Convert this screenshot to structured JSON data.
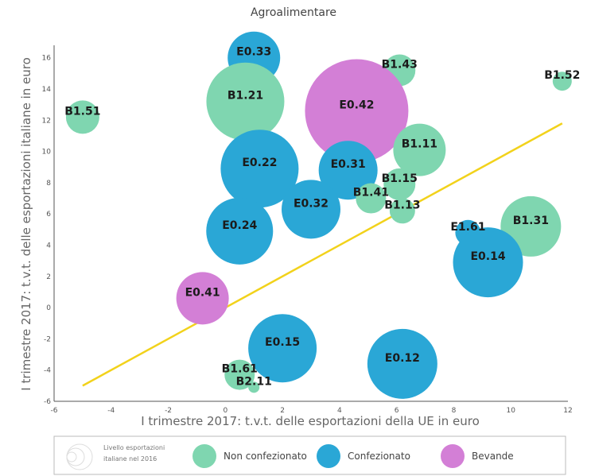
{
  "chart_data": {
    "type": "scatter",
    "title": "Agroalimentare",
    "xlabel": "I trimestre 2017: t.v.t. delle esportazioni della UE in euro",
    "ylabel": "I trimestre 2017: t.v.t. delle esportazioni italiane in euro",
    "xlim": [
      -6,
      12
    ],
    "ylim": [
      -6,
      16.8
    ],
    "xticks": [
      -6,
      -4,
      -2,
      0,
      2,
      4,
      6,
      8,
      10,
      12
    ],
    "yticks": [
      -6,
      -4,
      -2,
      0,
      2,
      4,
      6,
      8,
      10,
      12,
      14,
      16
    ],
    "grid": false,
    "trend_line": {
      "x": [
        -5,
        11.8
      ],
      "y": [
        -5,
        11.8
      ],
      "color": "#f2d21b"
    },
    "categories": {
      "non_confezionato": "#7fd6b0",
      "confezionato": "#2aa7d6",
      "bevande": "#d37fd6"
    },
    "points": [
      {
        "label": "E0.33",
        "x": 1.0,
        "y": 16.0,
        "size": 33,
        "category": "confezionato"
      },
      {
        "label": "B1.43",
        "x": 6.1,
        "y": 15.2,
        "size": 20,
        "category": "non_confezionato"
      },
      {
        "label": "B1.52",
        "x": 11.8,
        "y": 14.5,
        "size": 12,
        "category": "non_confezionato"
      },
      {
        "label": "B1.21",
        "x": 0.7,
        "y": 13.2,
        "size": 49,
        "category": "non_confezionato"
      },
      {
        "label": "E0.42",
        "x": 4.6,
        "y": 12.6,
        "size": 65,
        "category": "bevande"
      },
      {
        "label": "B1.51",
        "x": -5.0,
        "y": 12.2,
        "size": 21,
        "category": "non_confezionato"
      },
      {
        "label": "B1.11",
        "x": 6.8,
        "y": 10.1,
        "size": 33,
        "category": "non_confezionato"
      },
      {
        "label": "E0.22",
        "x": 1.2,
        "y": 8.9,
        "size": 49,
        "category": "confezionato"
      },
      {
        "label": "E0.31",
        "x": 4.3,
        "y": 8.8,
        "size": 37,
        "category": "confezionato"
      },
      {
        "label": "B1.15",
        "x": 6.1,
        "y": 7.9,
        "size": 20,
        "category": "non_confezionato"
      },
      {
        "label": "B1.41",
        "x": 5.1,
        "y": 7.0,
        "size": 19,
        "category": "non_confezionato"
      },
      {
        "label": "E0.32",
        "x": 3.0,
        "y": 6.3,
        "size": 37,
        "category": "confezionato"
      },
      {
        "label": "B1.13",
        "x": 6.2,
        "y": 6.2,
        "size": 16,
        "category": "non_confezionato"
      },
      {
        "label": "E0.24",
        "x": 0.5,
        "y": 4.9,
        "size": 42,
        "category": "confezionato"
      },
      {
        "label": "B1.31",
        "x": 10.7,
        "y": 5.2,
        "size": 38,
        "category": "non_confezionato"
      },
      {
        "label": "E1.61",
        "x": 8.5,
        "y": 4.8,
        "size": 16,
        "category": "confezionato"
      },
      {
        "label": "E0.14",
        "x": 9.2,
        "y": 2.9,
        "size": 44,
        "category": "confezionato"
      },
      {
        "label": "E0.41",
        "x": -0.8,
        "y": 0.6,
        "size": 33,
        "category": "bevande"
      },
      {
        "label": "E0.15",
        "x": 2.0,
        "y": -2.6,
        "size": 43,
        "category": "confezionato"
      },
      {
        "label": "E0.12",
        "x": 6.2,
        "y": -3.6,
        "size": 44,
        "category": "confezionato"
      },
      {
        "label": "B1.61",
        "x": 0.5,
        "y": -4.3,
        "size": 19,
        "category": "non_confezionato"
      },
      {
        "label": "B2.11",
        "x": 1.0,
        "y": -5.1,
        "size": 7,
        "category": "non_confezionato"
      }
    ],
    "legend": {
      "size_label_line1": "Livello esportazioni",
      "size_label_line2": "italiane nel 2016",
      "items": [
        {
          "label": "Non confezionato",
          "color": "#7fd6b0"
        },
        {
          "label": "Confezionato",
          "color": "#2aa7d6"
        },
        {
          "label": "Bevande",
          "color": "#d37fd6"
        }
      ],
      "placement": "bottom"
    }
  }
}
